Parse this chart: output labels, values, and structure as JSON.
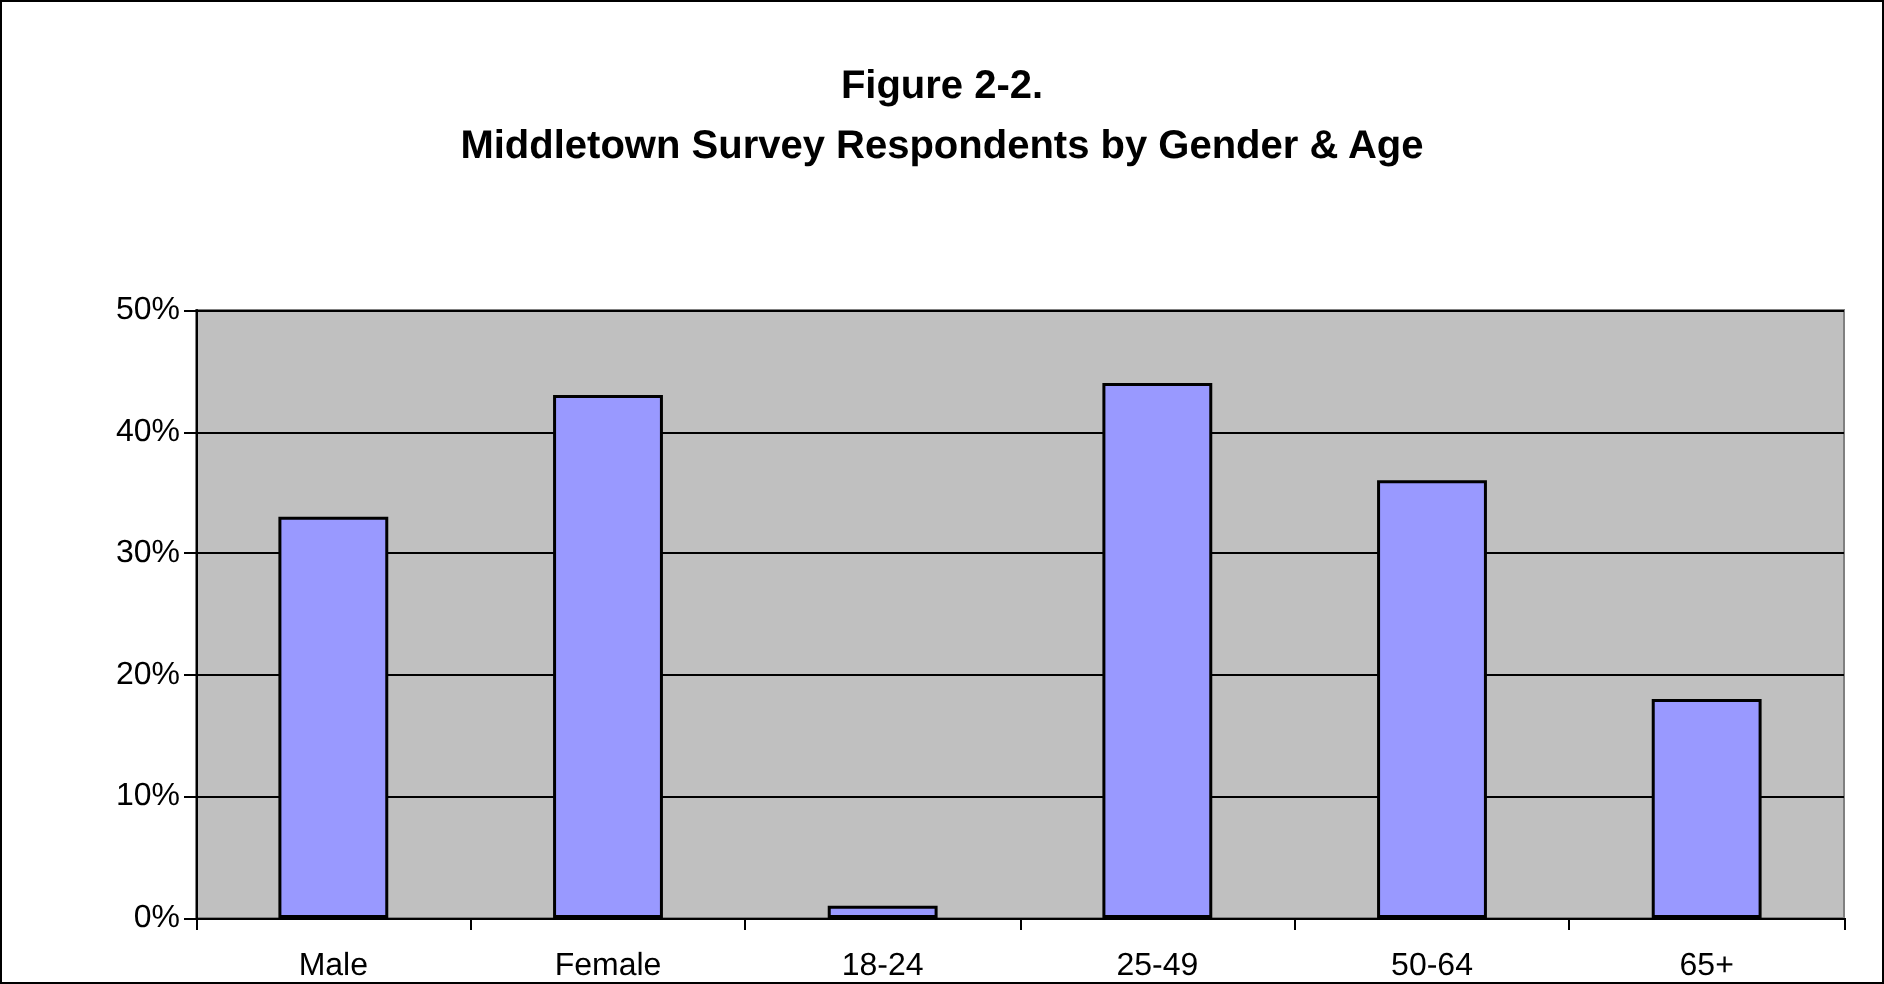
{
  "chart_data": {
    "type": "bar",
    "title": "Figure 2-2.\nMiddletown Survey Respondents by Gender & Age",
    "categories": [
      "Male",
      "Female",
      "18-24",
      "25-49",
      "50-64",
      "65+"
    ],
    "values": [
      33,
      43,
      1,
      44,
      36,
      18
    ],
    "color": "#9999ff",
    "ylim": [
      0,
      50
    ],
    "yticks": [
      {
        "value": 0,
        "label": "0%"
      },
      {
        "value": 10,
        "label": "10%"
      },
      {
        "value": 20,
        "label": "20%"
      },
      {
        "value": 30,
        "label": "30%"
      },
      {
        "value": 40,
        "label": "40%"
      },
      {
        "value": 50,
        "label": "50%"
      }
    ],
    "grid": "y"
  }
}
